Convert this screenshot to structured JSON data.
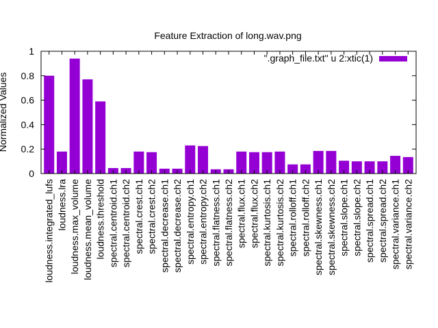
{
  "chart_data": {
    "type": "bar",
    "title": "Feature Extraction of long.wav.png",
    "ylabel": "Normalized Values",
    "xlabel": "",
    "ylim": [
      0,
      1
    ],
    "yticks": [
      "0",
      "0.2",
      "0.4",
      "0.6",
      "0.8",
      "1"
    ],
    "ytick_values": [
      0,
      0.2,
      0.4,
      0.6,
      0.8,
      1
    ],
    "grid": false,
    "legend_position": "top-right",
    "bar_color": "#9400d3",
    "categories": [
      "loudness.integrated_lufs",
      "loudness.lra",
      "loudness.max_volume",
      "loudness.mean_volume",
      "loudness.threshold",
      "spectral.centroid.ch1",
      "spectral.centroid.ch2",
      "spectral.crest.ch1",
      "spectral.crest.ch2",
      "spectral.decrease.ch1",
      "spectral.decrease.ch2",
      "spectral.entropy.ch1",
      "spectral.entropy.ch2",
      "spectral.flatness.ch1",
      "spectral.flatness.ch2",
      "spectral.flux.ch1",
      "spectral.flux.ch2",
      "spectral.kurtosis.ch1",
      "spectral.kurtosis.ch2",
      "spectral.rolloff.ch1",
      "spectral.rolloff.ch2",
      "spectral.skewness.ch1",
      "spectral.skewness.ch2",
      "spectral.slope.ch1",
      "spectral.slope.ch2",
      "spectral.spread.ch1",
      "spectral.spread.ch2",
      "spectral.variance.ch1",
      "spectral.variance.ch2"
    ],
    "series": [
      {
        "name": "\".graph_file.txt\" u 2:xtic(1)",
        "values": [
          0.8,
          0.18,
          0.94,
          0.77,
          0.59,
          0.045,
          0.045,
          0.18,
          0.175,
          0.04,
          0.04,
          0.23,
          0.225,
          0.035,
          0.035,
          0.18,
          0.175,
          0.175,
          0.18,
          0.075,
          0.075,
          0.185,
          0.185,
          0.105,
          0.1,
          0.1,
          0.1,
          0.145,
          0.135
        ]
      }
    ]
  }
}
